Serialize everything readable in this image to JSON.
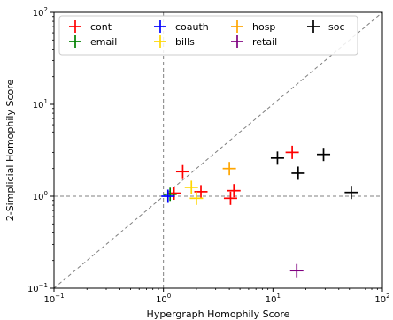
{
  "chart_data": {
    "type": "scatter",
    "title": "",
    "xlabel": "Hypergraph Homophily Score",
    "ylabel": "2-Simplicial Homophily Score",
    "xscale": "log",
    "yscale": "log",
    "xlim": [
      0.1,
      100
    ],
    "ylim": [
      0.1,
      100
    ],
    "ticks": [
      {
        "value": 0.1,
        "base": "10",
        "exp": "−1"
      },
      {
        "value": 1,
        "base": "10",
        "exp": "0"
      },
      {
        "value": 10,
        "base": "10",
        "exp": "1"
      },
      {
        "value": 100,
        "base": "10",
        "exp": "2"
      }
    ],
    "grid": false,
    "reference_lines": {
      "diagonal": "y = x",
      "vertical_x": 1,
      "horizontal_y": 1
    },
    "legend_position": "top-left",
    "series": [
      {
        "name": "cont",
        "color": "#ff0000",
        "points": [
          [
            1.25,
            1.08
          ],
          [
            1.5,
            1.85
          ],
          [
            2.2,
            1.12
          ],
          [
            4.1,
            0.95
          ],
          [
            4.4,
            1.15
          ],
          [
            15,
            3.0
          ]
        ]
      },
      {
        "name": "email",
        "color": "#008000",
        "points": [
          [
            1.15,
            1.05
          ]
        ]
      },
      {
        "name": "coauth",
        "color": "#0000ff",
        "points": [
          [
            1.1,
            1.0
          ]
        ]
      },
      {
        "name": "bills",
        "color": "#ffd700",
        "points": [
          [
            1.8,
            1.25
          ],
          [
            2.0,
            0.95
          ]
        ]
      },
      {
        "name": "hosp",
        "color": "#ffa500",
        "points": [
          [
            4.0,
            2.0
          ]
        ]
      },
      {
        "name": "retail",
        "color": "#800080",
        "points": [
          [
            16.5,
            0.155
          ]
        ]
      },
      {
        "name": "soc",
        "color": "#000000",
        "points": [
          [
            11,
            2.6
          ],
          [
            17,
            1.78
          ],
          [
            29,
            2.85
          ],
          [
            52,
            1.1
          ]
        ]
      }
    ]
  }
}
